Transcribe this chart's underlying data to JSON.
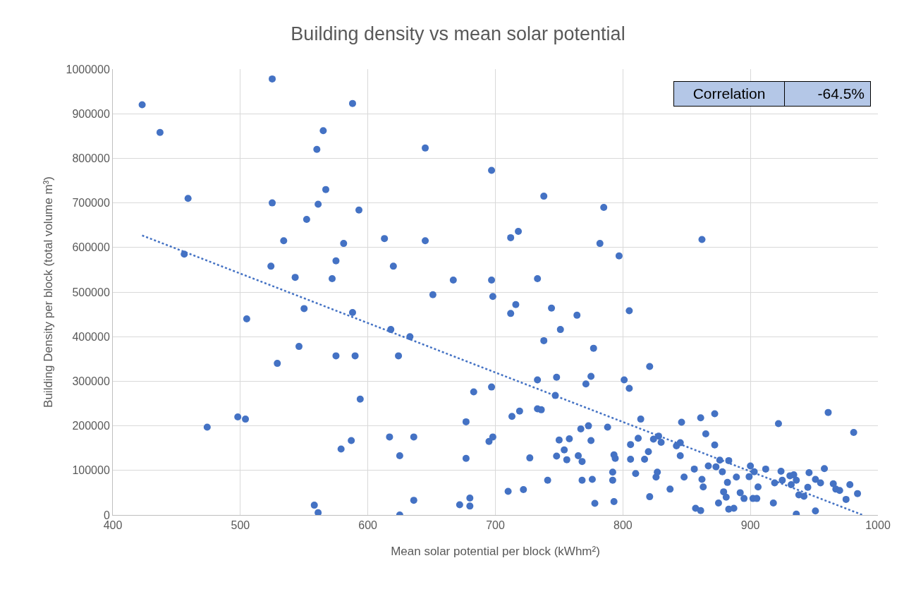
{
  "chart_data": {
    "type": "scatter",
    "title": "Building density vs mean solar potential",
    "xlabel": "Mean solar potential per block (kWhm²)",
    "ylabel": "Building Density per block (total volume m³)",
    "xlim": [
      400,
      1000
    ],
    "xticks": [
      400,
      500,
      600,
      700,
      800,
      900,
      1000
    ],
    "ylim": [
      0,
      1000000
    ],
    "yticks": [
      0,
      100000,
      200000,
      300000,
      400000,
      500000,
      600000,
      700000,
      800000,
      900000,
      1000000
    ],
    "grid": true,
    "annotations": [
      "Correlation",
      "-64.5%"
    ],
    "series": [
      {
        "marker": "circle",
        "color": "#4472c4",
        "x": [
          423,
          437,
          459,
          456,
          474,
          498,
          504,
          505,
          525,
          524,
          525,
          529,
          534,
          543,
          546,
          550,
          552,
          558,
          560,
          561,
          561,
          565,
          567,
          572,
          575,
          575,
          579,
          581,
          587,
          588,
          588,
          590,
          593,
          594,
          613,
          617,
          618,
          620,
          624,
          625,
          625,
          633,
          636,
          636,
          645,
          645,
          651,
          667,
          672,
          677,
          677,
          680,
          680,
          683,
          695,
          697,
          697,
          697,
          698,
          698,
          710,
          712,
          712,
          713,
          716,
          718,
          719,
          722,
          727,
          733,
          733,
          733,
          736,
          738,
          738,
          741,
          744,
          747,
          748,
          748,
          750,
          751,
          754,
          756,
          758,
          764,
          765,
          767,
          768,
          768,
          771,
          773,
          775,
          775,
          776,
          777,
          778,
          782,
          785,
          788,
          792,
          792,
          793,
          793,
          794,
          797,
          801,
          805,
          805,
          806,
          806,
          810,
          812,
          814,
          817,
          820,
          821,
          821,
          824,
          826,
          827,
          828,
          830,
          837,
          842,
          845,
          845,
          846,
          848,
          856,
          857,
          861,
          862,
          861,
          862,
          863,
          865,
          867,
          872,
          872,
          873,
          875,
          876,
          878,
          879,
          881,
          882,
          883,
          883,
          887,
          889,
          892,
          895,
          899,
          900,
          902,
          903,
          905,
          906,
          912,
          918,
          919,
          922,
          924,
          925,
          931,
          932,
          934,
          936,
          936,
          938,
          942,
          945,
          946,
          951,
          951,
          955,
          958,
          961,
          965,
          967,
          970,
          975,
          978,
          981,
          984
        ],
        "values": [
          920000,
          858000,
          710000,
          585000,
          197000,
          220000,
          215000,
          440000,
          978000,
          558000,
          700000,
          340000,
          615000,
          533000,
          378000,
          463000,
          663000,
          22000,
          820000,
          697000,
          5000,
          862000,
          730000,
          530000,
          570000,
          357000,
          148000,
          609000,
          167000,
          923000,
          454000,
          357000,
          684000,
          260000,
          620000,
          175000,
          416000,
          558000,
          357000,
          133000,
          0,
          400000,
          175000,
          33000,
          823000,
          615000,
          494000,
          527000,
          23000,
          209000,
          127000,
          20000,
          38000,
          276000,
          165000,
          287000,
          773000,
          527000,
          490000,
          175000,
          53000,
          622000,
          452000,
          221000,
          472000,
          636000,
          233000,
          57000,
          128000,
          530000,
          303000,
          238000,
          236000,
          715000,
          391000,
          78000,
          464000,
          268000,
          309000,
          132000,
          168000,
          416000,
          146000,
          124000,
          171000,
          448000,
          133000,
          193000,
          120000,
          78000,
          294000,
          200000,
          311000,
          167000,
          80000,
          374000,
          26000,
          609000,
          690000,
          197000,
          96000,
          78000,
          135000,
          30000,
          127000,
          581000,
          303000,
          458000,
          284000,
          158000,
          125000,
          93000,
          172000,
          215000,
          125000,
          142000,
          333000,
          41000,
          170000,
          85000,
          96000,
          177000,
          163000,
          58000,
          155000,
          162000,
          133000,
          208000,
          85000,
          103000,
          15000,
          218000,
          618000,
          10000,
          80000,
          63000,
          182000,
          110000,
          157000,
          227000,
          108000,
          27000,
          123000,
          97000,
          52000,
          40000,
          73000,
          122000,
          13000,
          15000,
          85000,
          50000,
          37000,
          86000,
          110000,
          37000,
          97000,
          37000,
          63000,
          103000,
          27000,
          72000,
          205000,
          98000,
          78000,
          88000,
          68000,
          90000,
          2000,
          78000,
          45000,
          42000,
          62000,
          95000,
          9000,
          80000,
          72000,
          104000,
          230000,
          70000,
          58000,
          55000,
          35000,
          68000,
          185000,
          48000
        ]
      },
      {
        "type": "line",
        "marker": "none",
        "color": "#4472c4",
        "line_style": "dotted",
        "x": [
          423,
          988
        ],
        "values": [
          627000,
          0
        ]
      }
    ]
  }
}
